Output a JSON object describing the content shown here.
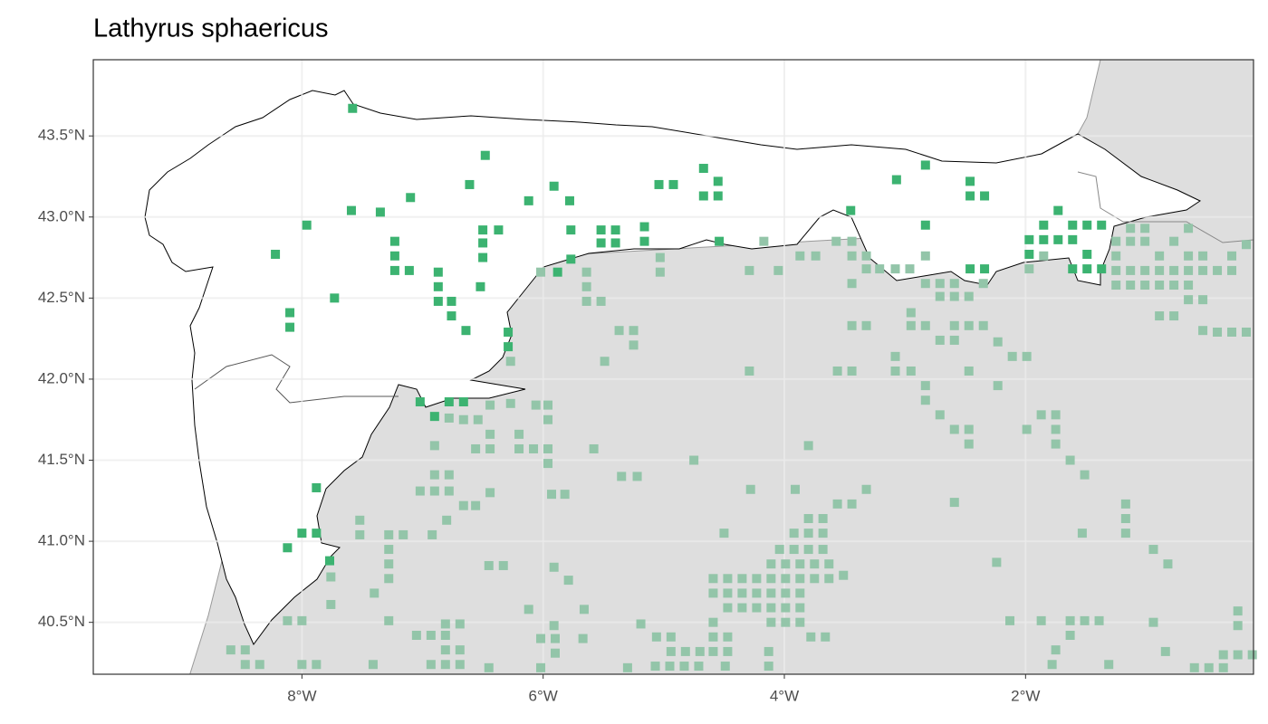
{
  "chart_data": {
    "type": "map",
    "title": "Lathyrus sphaericus",
    "xlim": [
      -9.73,
      -0.11
    ],
    "ylim": [
      40.18,
      43.97
    ],
    "xticks": [
      {
        "value": -8,
        "label": "8°W"
      },
      {
        "value": -6,
        "label": "6°W"
      },
      {
        "value": -4,
        "label": "4°W"
      },
      {
        "value": -2,
        "label": "2°W"
      }
    ],
    "yticks": [
      {
        "value": 40.5,
        "label": "40.5°N"
      },
      {
        "value": 41.0,
        "label": "41.0°N"
      },
      {
        "value": 41.5,
        "label": "41.5°N"
      },
      {
        "value": 42.0,
        "label": "42.0°N"
      },
      {
        "value": 42.5,
        "label": "42.5°N"
      },
      {
        "value": 43.0,
        "label": "43.0°N"
      },
      {
        "value": 43.5,
        "label": "43.5°N"
      }
    ],
    "grid": true,
    "series": [
      {
        "color": "#93c5a9",
        "x": [
          -5.64,
          -5.64,
          -5.64,
          -5.52,
          -6.02,
          -5.37,
          -5.25,
          -5.25,
          -5.49,
          -5.03,
          -5.03,
          -6.27,
          -6.27,
          -5.96,
          -6.06,
          -5.96,
          -6.2,
          -6.2,
          -6.08,
          -5.96,
          -5.96,
          -6.44,
          -6.44,
          -6.56,
          -6.66,
          -6.54,
          -6.44,
          -6.78,
          -6.9,
          -6.9,
          -6.78,
          -7.02,
          -6.9,
          -6.78,
          -6.66,
          -6.56,
          -6.44,
          -6.8,
          -6.92,
          -7.28,
          -7.16,
          -7.28,
          -7.28,
          -7.28,
          -7.4,
          -7.52,
          -7.52,
          -7.76,
          -7.76,
          -8.12,
          -8.0,
          -7.28,
          -7.05,
          -6.93,
          -6.81,
          -6.69,
          -6.81,
          -6.81,
          -6.69,
          -6.93,
          -6.81,
          -6.69,
          -6.45,
          -8.59,
          -8.47,
          -8.35,
          -8.47,
          -8.0,
          -7.88,
          -7.41,
          -6.45,
          -6.33,
          -5.91,
          -5.79,
          -6.12,
          -5.91,
          -5.66,
          -6.02,
          -5.9,
          -5.9,
          -6.02,
          -5.67,
          -5.19,
          -5.06,
          -4.94,
          -4.94,
          -4.82,
          -4.7,
          -5.07,
          -4.95,
          -4.83,
          -4.71,
          -4.59,
          -4.47,
          -4.59,
          -4.47,
          -4.59,
          -4.47,
          -4.59,
          -4.59,
          -4.47,
          -4.35,
          -4.23,
          -4.47,
          -4.35,
          -4.23,
          -4.11,
          -4.35,
          -4.23,
          -4.11,
          -3.99,
          -3.87,
          -4.11,
          -3.99,
          -3.87,
          -3.99,
          -3.87,
          -4.11,
          -3.99,
          -3.87,
          -3.75,
          -3.63,
          -3.51,
          -4.11,
          -3.99,
          -3.87,
          -3.75,
          -3.63,
          -4.04,
          -3.92,
          -3.8,
          -3.68,
          -3.92,
          -3.8,
          -3.68,
          -3.8,
          -3.68,
          -3.56,
          -3.44,
          -3.32,
          -4.5,
          -4.28,
          -3.91,
          -3.8,
          -4.13,
          -4.13,
          -3.78,
          -3.66,
          -4.49,
          -5.3,
          -4.75,
          -5.35,
          -5.22,
          -5.58,
          -5.93,
          -5.82,
          -4.29,
          -4.29,
          -4.05,
          -4.17,
          -3.87,
          -3.74,
          -3.57,
          -3.44,
          -3.32,
          -3.21,
          -3.08,
          -2.96,
          -3.44,
          -3.32,
          -3.44,
          -3.44,
          -3.32,
          -2.95,
          -3.08,
          -3.08,
          -2.95,
          -3.44,
          -3.56,
          -2.83,
          -2.83,
          -2.71,
          -2.59,
          -2.47,
          -2.47,
          -2.83,
          -2.83,
          -2.71,
          -2.71,
          -2.59,
          -2.59,
          -2.47,
          -2.35,
          -2.95,
          -2.83,
          -2.71,
          -2.59,
          -2.59,
          -2.47,
          -2.35,
          -2.23,
          -2.11,
          -1.99,
          -2.47,
          -2.23,
          -1.99,
          -1.87,
          -1.75,
          -1.75,
          -1.75,
          -1.63,
          -1.51,
          -2.59,
          -2.24,
          -2.13,
          -1.87,
          -1.63,
          -1.51,
          -1.39,
          -1.63,
          -1.75,
          -1.78,
          -1.31,
          -1.53,
          -1.17,
          -1.17,
          -1.17,
          -0.94,
          -0.82,
          -0.94,
          -0.84,
          -0.24,
          -0.24,
          -0.36,
          -0.24,
          -0.12,
          -0.6,
          -0.48,
          -0.36,
          -1.97,
          -1.85,
          -1.25,
          -1.25,
          -1.13,
          -1.01,
          -1.25,
          -1.13,
          -1.01,
          -0.89,
          -0.77,
          -0.65,
          -0.53,
          -0.41,
          -0.29,
          -0.65,
          -0.77,
          -0.89,
          -0.65,
          -0.53,
          -0.89,
          -1.01,
          -1.13,
          -1.25,
          -1.13,
          -1.01,
          -0.77,
          -0.65,
          -0.65,
          -0.53,
          -0.29,
          -0.17,
          -0.89,
          -0.77,
          -0.53,
          -0.41,
          -0.29,
          -0.17
        ],
        "y": [
          42.66,
          42.57,
          42.48,
          42.48,
          42.66,
          42.3,
          42.3,
          42.21,
          42.11,
          42.75,
          42.66,
          42.11,
          41.85,
          41.84,
          41.84,
          41.75,
          41.66,
          41.57,
          41.57,
          41.57,
          41.48,
          41.66,
          41.57,
          41.57,
          41.75,
          41.75,
          41.84,
          41.76,
          41.59,
          41.41,
          41.41,
          41.31,
          41.31,
          41.31,
          41.22,
          41.22,
          41.3,
          41.13,
          41.04,
          41.04,
          41.04,
          40.95,
          40.86,
          40.77,
          40.68,
          41.13,
          41.04,
          40.78,
          40.61,
          40.51,
          40.51,
          40.51,
          40.42,
          40.42,
          40.49,
          40.49,
          40.42,
          40.33,
          40.33,
          40.24,
          40.24,
          40.24,
          40.22,
          40.33,
          40.33,
          40.24,
          40.24,
          40.24,
          40.24,
          40.24,
          40.85,
          40.85,
          40.84,
          40.76,
          40.58,
          40.48,
          40.58,
          40.4,
          40.4,
          40.31,
          40.22,
          40.4,
          40.49,
          40.41,
          40.41,
          40.32,
          40.32,
          40.32,
          40.23,
          40.23,
          40.23,
          40.23,
          40.32,
          40.32,
          40.41,
          40.41,
          40.5,
          40.59,
          40.68,
          40.77,
          40.77,
          40.77,
          40.77,
          40.68,
          40.68,
          40.68,
          40.68,
          40.59,
          40.59,
          40.59,
          40.59,
          40.59,
          40.5,
          40.5,
          40.5,
          40.68,
          40.68,
          40.77,
          40.77,
          40.77,
          40.77,
          40.77,
          40.79,
          40.86,
          40.86,
          40.86,
          40.86,
          40.86,
          40.95,
          40.95,
          40.95,
          40.95,
          41.05,
          41.05,
          41.05,
          41.14,
          41.14,
          41.23,
          41.23,
          41.32,
          41.05,
          41.32,
          41.32,
          41.59,
          40.32,
          40.23,
          40.41,
          40.41,
          40.23,
          40.22,
          41.5,
          41.4,
          41.4,
          41.57,
          41.29,
          41.29,
          42.05,
          42.67,
          42.67,
          42.85,
          42.76,
          42.76,
          42.85,
          42.85,
          42.76,
          42.68,
          42.68,
          42.68,
          42.76,
          42.68,
          42.59,
          42.33,
          42.33,
          42.41,
          42.14,
          42.05,
          42.05,
          42.05,
          42.05,
          41.96,
          41.87,
          41.78,
          41.69,
          41.69,
          41.6,
          42.76,
          42.59,
          42.59,
          42.51,
          42.59,
          42.51,
          42.51,
          42.59,
          42.33,
          42.33,
          42.24,
          42.24,
          42.33,
          42.33,
          42.33,
          42.23,
          42.14,
          42.14,
          42.05,
          41.96,
          41.69,
          41.78,
          41.78,
          41.69,
          41.6,
          41.5,
          41.41,
          41.24,
          40.87,
          40.51,
          40.51,
          40.51,
          40.51,
          40.51,
          40.42,
          40.33,
          40.24,
          40.24,
          41.05,
          41.23,
          41.14,
          41.05,
          40.95,
          40.86,
          40.5,
          40.32,
          40.57,
          40.48,
          40.3,
          40.3,
          40.3,
          40.22,
          40.22,
          40.22,
          42.68,
          42.76,
          42.76,
          42.67,
          42.67,
          42.67,
          42.58,
          42.58,
          42.58,
          42.58,
          42.58,
          42.58,
          42.67,
          42.67,
          42.67,
          42.67,
          42.67,
          42.67,
          42.49,
          42.49,
          42.76,
          42.85,
          42.85,
          42.85,
          42.93,
          42.93,
          42.85,
          42.93,
          42.76,
          42.76,
          42.76,
          42.83,
          42.39,
          42.39,
          42.3,
          42.29,
          42.29,
          42.29
        ]
      },
      {
        "color": "#3cb371",
        "x": [
          -7.58,
          -6.48,
          -6.61,
          -5.91,
          -6.12,
          -5.78,
          -7.1,
          -7.59,
          -7.35,
          -7.96,
          -8.22,
          -7.23,
          -7.23,
          -7.23,
          -7.11,
          -6.87,
          -6.87,
          -6.87,
          -6.76,
          -6.76,
          -6.64,
          -7.73,
          -8.1,
          -8.1,
          -6.5,
          -6.37,
          -6.5,
          -6.5,
          -6.52,
          -5.77,
          -5.77,
          -5.88,
          -5.52,
          -5.4,
          -5.52,
          -5.4,
          -5.16,
          -5.16,
          -5.04,
          -4.92,
          -4.67,
          -4.55,
          -4.67,
          -4.55,
          -4.54,
          -3.07,
          -2.83,
          -2.46,
          -2.46,
          -2.34,
          -3.45,
          -2.83,
          -2.46,
          -2.34,
          -1.73,
          -1.85,
          -1.97,
          -1.85,
          -1.73,
          -1.61,
          -1.61,
          -1.49,
          -1.37,
          -1.49,
          -1.61,
          -1.49,
          -1.37,
          -1.97,
          -7.02,
          -6.9,
          -6.78,
          -6.66,
          -7.88,
          -8.0,
          -7.88,
          -8.12,
          -7.77,
          -6.29,
          -6.29
        ],
        "y": [
          43.67,
          43.38,
          43.2,
          43.19,
          43.1,
          43.1,
          43.12,
          43.04,
          43.03,
          42.95,
          42.77,
          42.85,
          42.76,
          42.67,
          42.67,
          42.66,
          42.57,
          42.48,
          42.48,
          42.39,
          42.3,
          42.5,
          42.41,
          42.32,
          42.92,
          42.92,
          42.84,
          42.75,
          42.57,
          42.92,
          42.74,
          42.66,
          42.92,
          42.92,
          42.84,
          42.84,
          42.94,
          42.85,
          43.2,
          43.2,
          43.3,
          43.22,
          43.13,
          43.13,
          42.85,
          43.23,
          43.32,
          43.22,
          43.13,
          43.13,
          43.04,
          42.95,
          42.68,
          42.68,
          43.04,
          42.95,
          42.86,
          42.86,
          42.86,
          42.86,
          42.95,
          42.95,
          42.95,
          42.77,
          42.68,
          42.68,
          42.68,
          42.77,
          41.86,
          41.77,
          41.86,
          41.86,
          41.33,
          41.05,
          41.05,
          40.96,
          40.88,
          42.29,
          42.2
        ]
      }
    ]
  }
}
